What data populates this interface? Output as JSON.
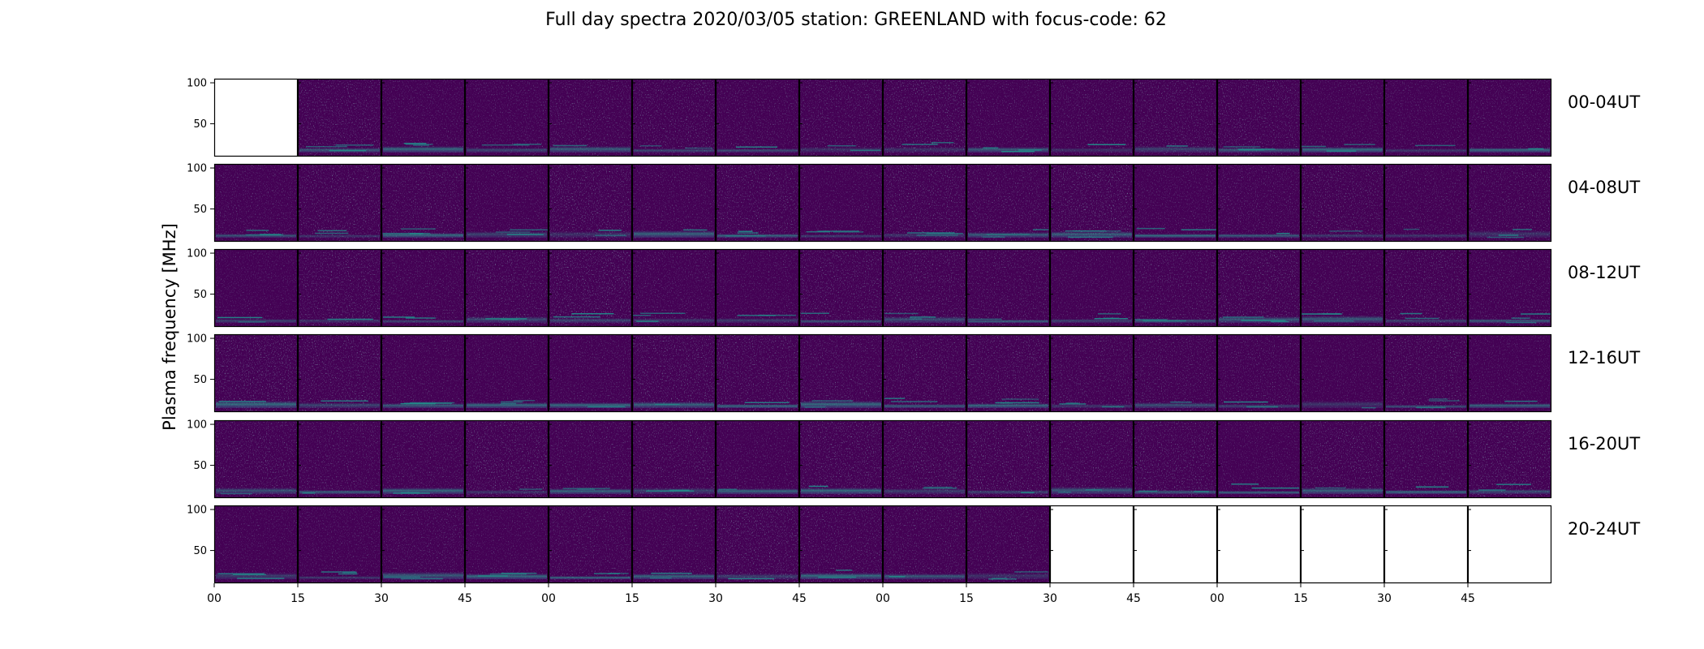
{
  "chart_data": {
    "type": "heatmap",
    "title": "Full day spectra 2020/03/05 station: GREENLAND with focus-code: 62",
    "ylabel": "Plasma frequency [MHz]",
    "y_ticks": [
      100,
      50
    ],
    "ylim": [
      10,
      105
    ],
    "x_ticks": [
      "00",
      "15",
      "30",
      "45",
      "00",
      "15",
      "30",
      "45",
      "00",
      "15",
      "30",
      "45",
      "00",
      "15",
      "30",
      "45"
    ],
    "colormap": "viridis",
    "colors": {
      "background": "#440154",
      "low": "#46085c",
      "mid": "#3b528b",
      "high": "#21918c",
      "peak": "#5ec962"
    },
    "panels_per_row": 16,
    "rows": [
      {
        "label": "00-04UT",
        "panels": [
          0,
          1,
          1,
          1,
          1,
          1,
          1,
          1,
          1,
          1,
          1,
          1,
          1,
          1,
          1,
          1
        ]
      },
      {
        "label": "04-08UT",
        "panels": [
          1,
          1,
          1,
          1,
          1,
          1,
          1,
          1,
          1,
          1,
          1,
          1,
          1,
          1,
          1,
          1
        ]
      },
      {
        "label": "08-12UT",
        "panels": [
          1,
          1,
          1,
          1,
          1,
          1,
          1,
          1,
          1,
          1,
          1,
          1,
          1,
          1,
          1,
          1
        ]
      },
      {
        "label": "12-16UT",
        "panels": [
          1,
          1,
          1,
          1,
          1,
          1,
          1,
          1,
          1,
          1,
          1,
          1,
          1,
          1,
          1,
          1
        ]
      },
      {
        "label": "16-20UT",
        "panels": [
          1,
          1,
          1,
          1,
          1,
          1,
          1,
          1,
          1,
          1,
          1,
          1,
          1,
          1,
          1,
          1
        ]
      },
      {
        "label": "20-24UT",
        "panels": [
          1,
          1,
          1,
          1,
          1,
          1,
          1,
          1,
          1,
          1,
          0,
          0,
          0,
          0,
          0,
          0
        ]
      }
    ]
  }
}
